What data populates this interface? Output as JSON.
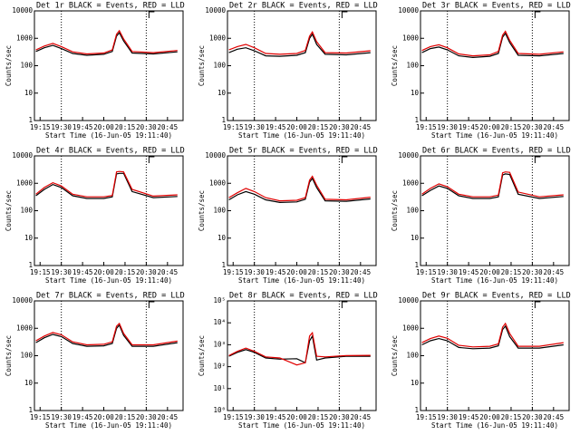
{
  "chart_data": [
    {
      "type": "line",
      "title": "Det 1r BLACK = Events, RED = LLD",
      "xlabel": "Start Time (16-Jun-05 19:11:40)",
      "ylabel": "Counts/sec",
      "x": [
        "19:12",
        "19:18",
        "19:24",
        "19:30",
        "19:38",
        "19:48",
        "20:00",
        "20:06",
        "20:09",
        "20:11",
        "20:14",
        "20:20",
        "20:35",
        "20:52"
      ],
      "series": [
        {
          "color": "#000000",
          "values": [
            330,
            450,
            550,
            420,
            280,
            240,
            260,
            330,
            1200,
            1600,
            800,
            290,
            270,
            320
          ]
        },
        {
          "color": "#e00000",
          "values": [
            380,
            520,
            650,
            500,
            320,
            270,
            290,
            380,
            1400,
            1900,
            950,
            330,
            300,
            360
          ]
        }
      ],
      "xlim": [
        "19:11",
        "20:56"
      ],
      "xticks": [
        "19:15",
        "19:30",
        "19:45",
        "20:00",
        "20:15",
        "20:30",
        "20:45"
      ],
      "ylim": [
        1,
        10000
      ],
      "yticks": [
        1,
        10,
        100,
        1000,
        10000
      ],
      "log_scale": "y",
      "vlines": [
        "19:30",
        "20:30"
      ]
    },
    {
      "type": "line",
      "title": "Det 2r BLACK = Events, RED = LLD",
      "xlabel": "Start Time (16-Jun-05 19:11:40)",
      "ylabel": "Counts/sec",
      "x": [
        "19:12",
        "19:18",
        "19:24",
        "19:30",
        "19:38",
        "19:48",
        "20:00",
        "20:06",
        "20:09",
        "20:11",
        "20:14",
        "20:20",
        "20:35",
        "20:52"
      ],
      "series": [
        {
          "color": "#000000",
          "values": [
            300,
            400,
            450,
            350,
            230,
            220,
            240,
            300,
            1000,
            1400,
            600,
            260,
            250,
            300
          ]
        },
        {
          "color": "#e00000",
          "values": [
            380,
            500,
            600,
            450,
            280,
            260,
            280,
            360,
            1200,
            1700,
            750,
            300,
            290,
            350
          ]
        }
      ],
      "xlim": [
        "19:11",
        "20:56"
      ],
      "xticks": [
        "19:15",
        "19:30",
        "19:45",
        "20:00",
        "20:15",
        "20:30",
        "20:45"
      ],
      "ylim": [
        1,
        10000
      ],
      "yticks": [
        1,
        10,
        100,
        1000,
        10000
      ],
      "log_scale": "y",
      "vlines": [
        "19:30",
        "20:30"
      ]
    },
    {
      "type": "line",
      "title": "Det 3r BLACK = Events, RED = LLD",
      "xlabel": "Start Time (16-Jun-05 19:11:40)",
      "ylabel": "Counts/sec",
      "x": [
        "19:12",
        "19:18",
        "19:24",
        "19:30",
        "19:38",
        "19:48",
        "20:00",
        "20:06",
        "20:09",
        "20:11",
        "20:14",
        "20:20",
        "20:35",
        "20:52"
      ],
      "series": [
        {
          "color": "#000000",
          "values": [
            300,
            420,
            480,
            380,
            230,
            200,
            220,
            280,
            1100,
            1500,
            700,
            240,
            230,
            280
          ]
        },
        {
          "color": "#e00000",
          "values": [
            360,
            500,
            580,
            450,
            270,
            230,
            250,
            330,
            1300,
            1800,
            850,
            280,
            260,
            320
          ]
        }
      ],
      "xlim": [
        "19:11",
        "20:56"
      ],
      "xticks": [
        "19:15",
        "19:30",
        "19:45",
        "20:00",
        "20:15",
        "20:30",
        "20:45"
      ],
      "ylim": [
        1,
        10000
      ],
      "yticks": [
        1,
        10,
        100,
        1000,
        10000
      ],
      "log_scale": "y",
      "vlines": [
        "19:30",
        "20:30"
      ]
    },
    {
      "type": "line",
      "title": "Det 4r BLACK = Events, RED = LLD",
      "xlabel": "Start Time (16-Jun-05 19:11:40)",
      "ylabel": "Counts/sec",
      "x": [
        "19:12",
        "19:18",
        "19:24",
        "19:30",
        "19:38",
        "19:48",
        "20:00",
        "20:06",
        "20:09",
        "20:11",
        "20:14",
        "20:20",
        "20:35",
        "20:52"
      ],
      "series": [
        {
          "color": "#000000",
          "values": [
            350,
            600,
            900,
            700,
            350,
            280,
            280,
            320,
            2200,
            2300,
            2300,
            500,
            300,
            330
          ]
        },
        {
          "color": "#e00000",
          "values": [
            400,
            700,
            1050,
            800,
            400,
            320,
            320,
            360,
            2600,
            2700,
            2600,
            600,
            340,
            380
          ]
        }
      ],
      "xlim": [
        "19:11",
        "20:56"
      ],
      "xticks": [
        "19:15",
        "19:30",
        "19:45",
        "20:00",
        "20:15",
        "20:30",
        "20:45"
      ],
      "ylim": [
        1,
        10000
      ],
      "yticks": [
        1,
        10,
        100,
        1000,
        10000
      ],
      "log_scale": "y",
      "vlines": [
        "19:30",
        "20:30"
      ]
    },
    {
      "type": "line",
      "title": "Det 5r BLACK = Events, RED = LLD",
      "xlabel": "Start Time (16-Jun-05 19:11:40)",
      "ylabel": "Counts/sec",
      "x": [
        "19:12",
        "19:18",
        "19:24",
        "19:30",
        "19:38",
        "19:48",
        "20:00",
        "20:06",
        "20:09",
        "20:11",
        "20:14",
        "20:20",
        "20:35",
        "20:52"
      ],
      "series": [
        {
          "color": "#000000",
          "values": [
            250,
            380,
            500,
            400,
            250,
            200,
            210,
            260,
            1100,
            1500,
            700,
            230,
            220,
            270
          ]
        },
        {
          "color": "#e00000",
          "values": [
            300,
            450,
            650,
            500,
            300,
            230,
            240,
            300,
            1300,
            1800,
            850,
            260,
            250,
            310
          ]
        }
      ],
      "xlim": [
        "19:11",
        "20:56"
      ],
      "xticks": [
        "19:15",
        "19:30",
        "19:45",
        "20:00",
        "20:15",
        "20:30",
        "20:45"
      ],
      "ylim": [
        1,
        10000
      ],
      "yticks": [
        1,
        10,
        100,
        1000,
        10000
      ],
      "log_scale": "y",
      "vlines": [
        "19:30",
        "20:30"
      ]
    },
    {
      "type": "line",
      "title": "Det 6r BLACK = Events, RED = LLD",
      "xlabel": "Start Time (16-Jun-05 19:11:40)",
      "ylabel": "Counts/sec",
      "x": [
        "19:12",
        "19:18",
        "19:24",
        "19:30",
        "19:38",
        "19:48",
        "20:00",
        "20:06",
        "20:09",
        "20:11",
        "20:14",
        "20:20",
        "20:35",
        "20:52"
      ],
      "series": [
        {
          "color": "#000000",
          "values": [
            350,
            550,
            800,
            650,
            350,
            280,
            280,
            320,
            2000,
            2200,
            2100,
            400,
            280,
            330
          ]
        },
        {
          "color": "#e00000",
          "values": [
            400,
            650,
            950,
            750,
            400,
            320,
            320,
            370,
            2400,
            2600,
            2500,
            480,
            320,
            380
          ]
        }
      ],
      "xlim": [
        "19:11",
        "20:56"
      ],
      "xticks": [
        "19:15",
        "19:30",
        "19:45",
        "20:00",
        "20:15",
        "20:30",
        "20:45"
      ],
      "ylim": [
        1,
        10000
      ],
      "yticks": [
        1,
        10,
        100,
        1000,
        10000
      ],
      "log_scale": "y",
      "vlines": [
        "19:30",
        "20:30"
      ]
    },
    {
      "type": "line",
      "title": "Det 7r BLACK = Events, RED = LLD",
      "xlabel": "Start Time (16-Jun-05 19:11:40)",
      "ylabel": "Counts/sec",
      "x": [
        "19:12",
        "19:18",
        "19:24",
        "19:30",
        "19:38",
        "19:48",
        "20:00",
        "20:06",
        "20:09",
        "20:11",
        "20:14",
        "20:20",
        "20:35",
        "20:52"
      ],
      "series": [
        {
          "color": "#000000",
          "values": [
            300,
            450,
            600,
            500,
            280,
            220,
            230,
            280,
            1000,
            1300,
            550,
            220,
            220,
            300
          ]
        },
        {
          "color": "#e00000",
          "values": [
            350,
            520,
            700,
            580,
            320,
            250,
            260,
            320,
            1200,
            1500,
            650,
            250,
            250,
            340
          ]
        }
      ],
      "xlim": [
        "19:11",
        "20:56"
      ],
      "xticks": [
        "19:15",
        "19:30",
        "19:45",
        "20:00",
        "20:15",
        "20:30",
        "20:45"
      ],
      "ylim": [
        1,
        10000
      ],
      "yticks": [
        1,
        10,
        100,
        1000,
        10000
      ],
      "log_scale": "y",
      "vlines": [
        "19:30",
        "20:30"
      ]
    },
    {
      "type": "line",
      "title": "Det 8r BLACK = Events, RED = LLD",
      "xlabel": "Start Time (16-Jun-05 19:11:40)",
      "ylabel": "Counts/sec",
      "x": [
        "19:12",
        "19:18",
        "19:24",
        "19:30",
        "19:38",
        "19:48",
        "20:00",
        "20:06",
        "20:09",
        "20:11",
        "20:14",
        "20:20",
        "20:35",
        "20:52"
      ],
      "series": [
        {
          "color": "#000000",
          "values": [
            300,
            450,
            600,
            450,
            250,
            220,
            230,
            150,
            1500,
            2500,
            200,
            250,
            300,
            300
          ]
        },
        {
          "color": "#e00000",
          "values": [
            320,
            500,
            700,
            500,
            280,
            250,
            120,
            150,
            2500,
            3500,
            300,
            280,
            320,
            330
          ]
        }
      ],
      "xlim": [
        "19:11",
        "20:56"
      ],
      "xticks": [
        "19:15",
        "19:30",
        "19:45",
        "20:00",
        "20:15",
        "20:30",
        "20:45"
      ],
      "ylim": [
        1,
        100000
      ],
      "yticks": [
        {
          "value": 1,
          "label": "10⁰"
        },
        {
          "value": 10,
          "label": "10¹"
        },
        {
          "value": 100,
          "label": "10²"
        },
        {
          "value": 1000,
          "label": "10³"
        },
        {
          "value": 10000,
          "label": "10⁴"
        },
        {
          "value": 100000,
          "label": "10⁵"
        }
      ],
      "log_scale": "y",
      "vlines": [
        "19:30",
        "20:30"
      ]
    },
    {
      "type": "line",
      "title": "Det 9r BLACK = Events, RED = LLD",
      "xlabel": "Start Time (16-Jun-05 19:11:40)",
      "ylabel": "Counts/sec",
      "x": [
        "19:12",
        "19:18",
        "19:24",
        "19:30",
        "19:38",
        "19:48",
        "20:00",
        "20:06",
        "20:09",
        "20:11",
        "20:14",
        "20:20",
        "20:35",
        "20:52"
      ],
      "series": [
        {
          "color": "#000000",
          "values": [
            250,
            350,
            420,
            350,
            200,
            180,
            190,
            230,
            900,
            1200,
            500,
            190,
            190,
            250
          ]
        },
        {
          "color": "#e00000",
          "values": [
            300,
            420,
            520,
            430,
            240,
            210,
            220,
            270,
            1100,
            1500,
            650,
            220,
            220,
            300
          ]
        }
      ],
      "xlim": [
        "19:11",
        "20:56"
      ],
      "xticks": [
        "19:15",
        "19:30",
        "19:45",
        "20:00",
        "20:15",
        "20:30",
        "20:45"
      ],
      "ylim": [
        1,
        10000
      ],
      "yticks": [
        1,
        10,
        100,
        1000,
        10000
      ],
      "log_scale": "y",
      "vlines": [
        "19:30",
        "20:30"
      ]
    }
  ]
}
